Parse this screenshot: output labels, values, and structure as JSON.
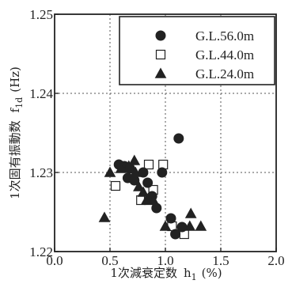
{
  "chart_data": {
    "type": "scatter",
    "xlabel": "1次減衰定数",
    "xlabel_symbol": "h",
    "xlabel_subscript": "1",
    "xlabel_unit": "(%)",
    "ylabel": "1次固有振動数",
    "ylabel_symbol": "f",
    "ylabel_subscript": "1d",
    "ylabel_unit": "(Hz)",
    "xlim": [
      0.0,
      2.0
    ],
    "ylim": [
      1.22,
      1.25
    ],
    "xticks": [
      "0.0",
      "0.5",
      "1.0",
      "1.5",
      "2.0"
    ],
    "yticks": [
      "1.22",
      "1.23",
      "1.24",
      "1.25"
    ],
    "grid": "dotted",
    "legend_position": "top-right",
    "series": [
      {
        "name": "G.L.56.0m",
        "marker": "filled-circle",
        "color": "#222222",
        "points": [
          {
            "x": 0.58,
            "y": 1.231
          },
          {
            "x": 0.63,
            "y": 1.2308
          },
          {
            "x": 0.68,
            "y": 1.2305
          },
          {
            "x": 0.66,
            "y": 1.2293
          },
          {
            "x": 0.72,
            "y": 1.229
          },
          {
            "x": 0.8,
            "y": 1.23
          },
          {
            "x": 0.84,
            "y": 1.2287
          },
          {
            "x": 0.88,
            "y": 1.227
          },
          {
            "x": 0.92,
            "y": 1.2255
          },
          {
            "x": 0.97,
            "y": 1.23
          },
          {
            "x": 1.12,
            "y": 1.2343
          },
          {
            "x": 1.05,
            "y": 1.2242
          },
          {
            "x": 1.09,
            "y": 1.2222
          },
          {
            "x": 1.15,
            "y": 1.2231
          }
        ]
      },
      {
        "name": "G.L.44.0m",
        "marker": "open-square",
        "color": "#222222",
        "points": [
          {
            "x": 0.55,
            "y": 1.2283
          },
          {
            "x": 0.78,
            "y": 1.2265
          },
          {
            "x": 0.85,
            "y": 1.231
          },
          {
            "x": 0.85,
            "y": 1.2265
          },
          {
            "x": 0.89,
            "y": 1.2278
          },
          {
            "x": 0.98,
            "y": 1.231
          },
          {
            "x": 1.06,
            "y": 1.2232
          },
          {
            "x": 1.17,
            "y": 1.2222
          }
        ]
      },
      {
        "name": "G.L.24.0m",
        "marker": "filled-triangle",
        "color": "#222222",
        "points": [
          {
            "x": 0.45,
            "y": 1.2243
          },
          {
            "x": 0.5,
            "y": 1.23
          },
          {
            "x": 0.6,
            "y": 1.2305
          },
          {
            "x": 0.67,
            "y": 1.2308
          },
          {
            "x": 0.72,
            "y": 1.2315
          },
          {
            "x": 0.73,
            "y": 1.23
          },
          {
            "x": 0.76,
            "y": 1.2282
          },
          {
            "x": 0.8,
            "y": 1.2275
          },
          {
            "x": 0.83,
            "y": 1.2265
          },
          {
            "x": 0.89,
            "y": 1.2265
          },
          {
            "x": 1.0,
            "y": 1.2232
          },
          {
            "x": 1.23,
            "y": 1.2248
          },
          {
            "x": 1.22,
            "y": 1.2232
          },
          {
            "x": 1.32,
            "y": 1.2232
          }
        ]
      }
    ]
  }
}
